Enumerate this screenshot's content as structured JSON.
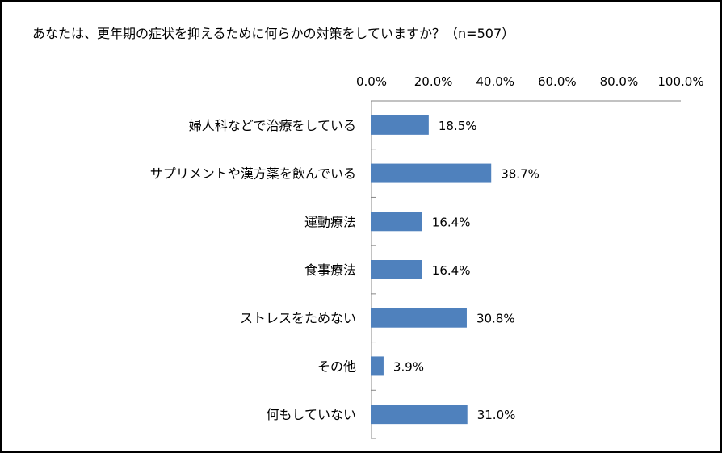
{
  "chart_data": {
    "type": "bar",
    "orientation": "horizontal",
    "title": "あなたは、更年期の症状を抑えるために何らかの対策をしていますか？（n=507）",
    "categories": [
      "婦人科などで治療をしている",
      "サプリメントや漢方薬を飲んでいる",
      "運動療法",
      "食事療法",
      "ストレスをためない",
      "その他",
      "何もしていない"
    ],
    "values": [
      18.5,
      38.7,
      16.4,
      16.4,
      30.8,
      3.9,
      31.0
    ],
    "data_labels": [
      "18.5%",
      "38.7%",
      "16.4%",
      "16.4%",
      "30.8%",
      "3.9%",
      "31.0%"
    ],
    "x_ticks": [
      "0.0%",
      "20.0%",
      "40.0%",
      "60.0%",
      "80.0%",
      "100.0%"
    ],
    "xlim": [
      0,
      100
    ],
    "xlabel": "",
    "ylabel": "",
    "axis_position": "top",
    "grid": false,
    "legend": "none",
    "bar_color": "#4f81bd"
  }
}
